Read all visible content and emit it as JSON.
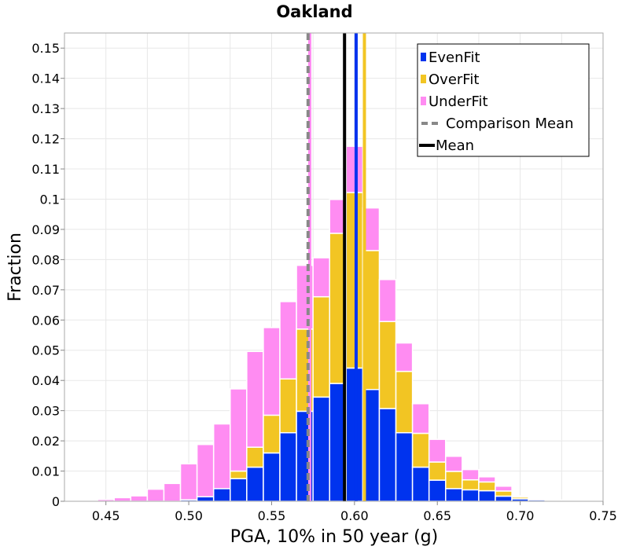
{
  "chart_data": {
    "type": "bar",
    "stacked": true,
    "title": "Oakland",
    "xlabel": "PGA, 10% in 50 year (g)",
    "ylabel": "Fraction",
    "xlim": [
      0.425,
      0.75
    ],
    "ylim": [
      0,
      0.155
    ],
    "xticks": [
      "0.45",
      "0.50",
      "0.55",
      "0.60",
      "0.65",
      "0.70",
      "0.75"
    ],
    "yticks": [
      "0",
      "0.01",
      "0.02",
      "0.03",
      "0.04",
      "0.05",
      "0.06",
      "0.07",
      "0.08",
      "0.09",
      "0.1",
      "0.11",
      "0.12",
      "0.13",
      "0.14",
      "0.15"
    ],
    "grid": true,
    "legend_position": "top-right",
    "bin_width": 0.01,
    "bin_centers": [
      0.43,
      0.44,
      0.45,
      0.46,
      0.47,
      0.48,
      0.49,
      0.5,
      0.51,
      0.52,
      0.53,
      0.54,
      0.55,
      0.56,
      0.57,
      0.58,
      0.59,
      0.6,
      0.61,
      0.62,
      0.63,
      0.64,
      0.65,
      0.66,
      0.67,
      0.68,
      0.69,
      0.7,
      0.71,
      0.72,
      0.73,
      0.74
    ],
    "series": [
      {
        "name": "EvenFit",
        "color": "#0033ee",
        "values": [
          0,
          0,
          0,
          0,
          0,
          0,
          0,
          0.0005,
          0.0015,
          0.0042,
          0.0075,
          0.0113,
          0.016,
          0.0227,
          0.0298,
          0.0345,
          0.039,
          0.0441,
          0.037,
          0.0307,
          0.0227,
          0.0113,
          0.007,
          0.0042,
          0.0038,
          0.0035,
          0.0017,
          0.0008,
          0.0005,
          0.0002,
          0.0001,
          0
        ]
      },
      {
        "name": "OverFit",
        "color": "#f2c523",
        "values": [
          0,
          0,
          0,
          0,
          0,
          0,
          0,
          0,
          0,
          0,
          0.0025,
          0.0066,
          0.0125,
          0.0178,
          0.0272,
          0.0332,
          0.0497,
          0.0581,
          0.046,
          0.0288,
          0.0203,
          0.0112,
          0.006,
          0.0057,
          0.0033,
          0.0029,
          0.0017,
          0.0006,
          0,
          0,
          0,
          0
        ]
      },
      {
        "name": "UnderFit",
        "color": "#ff8cf2",
        "values": [
          0.0002,
          0.0003,
          0.0006,
          0.0012,
          0.0018,
          0.004,
          0.0059,
          0.0119,
          0.0173,
          0.0214,
          0.0272,
          0.0317,
          0.029,
          0.0256,
          0.0211,
          0.0129,
          0.0112,
          0.0153,
          0.0141,
          0.0139,
          0.0094,
          0.0098,
          0.0075,
          0.005,
          0.0034,
          0.0017,
          0.0016,
          0.0004,
          0.0004,
          0.0002,
          0.0002,
          0.0001
        ]
      }
    ],
    "vertical_lines": [
      {
        "name": "UnderFit mean",
        "x": 0.573,
        "color": "#ff8cf2",
        "style": "solid"
      },
      {
        "name": "Comparison Mean",
        "x": 0.572,
        "color": "#888888",
        "style": "dashed"
      },
      {
        "name": "Mean",
        "x": 0.594,
        "color": "#000000",
        "style": "solid"
      },
      {
        "name": "EvenFit mean",
        "x": 0.601,
        "color": "#0033ee",
        "style": "solid"
      },
      {
        "name": "OverFit mean",
        "x": 0.606,
        "color": "#f2c523",
        "style": "solid"
      }
    ],
    "legend": [
      {
        "label": "EvenFit",
        "kind": "box",
        "color": "#0033ee"
      },
      {
        "label": "OverFit",
        "kind": "box",
        "color": "#f2c523"
      },
      {
        "label": "UnderFit",
        "kind": "box",
        "color": "#ff8cf2"
      },
      {
        "label": "Comparison Mean",
        "kind": "dashed",
        "color": "#888888"
      },
      {
        "label": "Mean",
        "kind": "line",
        "color": "#000000"
      }
    ]
  }
}
